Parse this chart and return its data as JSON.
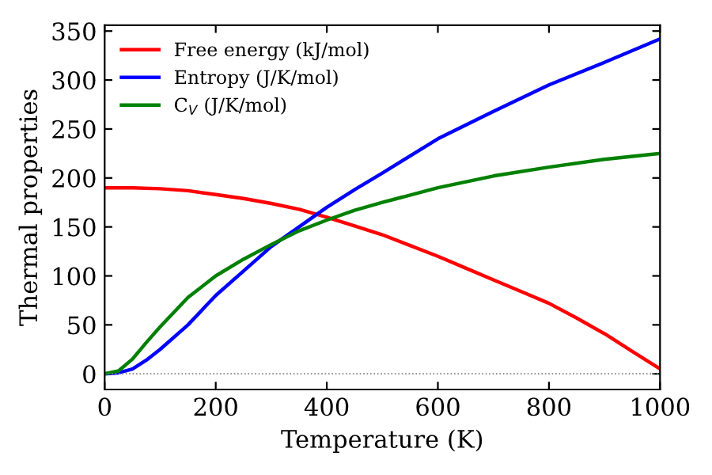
{
  "chart_data": {
    "type": "line",
    "xlabel": "Temperature (K)",
    "ylabel": "Thermal properties",
    "xlim": [
      0,
      1000
    ],
    "xticks": [
      0,
      200,
      400,
      600,
      800,
      1000
    ],
    "ylim": [
      -16,
      356
    ],
    "yticks": [
      0,
      50,
      100,
      150,
      200,
      250,
      300,
      350
    ],
    "legend": "top left",
    "grid": false,
    "marker": "none",
    "line_style": "solid",
    "ref_lines": [
      {
        "axis": "y",
        "value": 0,
        "color": "#808080",
        "line_style": "dotted"
      }
    ],
    "series": [
      {
        "name": "Free energy (kJ/mol)",
        "color": "#ff0000",
        "x": [
          0,
          50,
          100,
          150,
          200,
          250,
          300,
          350,
          400,
          450,
          500,
          550,
          600,
          650,
          700,
          750,
          800,
          850,
          900,
          950,
          1000
        ],
        "values": [
          190,
          190,
          189,
          187,
          183,
          179,
          174,
          168,
          160,
          151,
          142,
          131,
          120,
          108,
          96,
          84,
          72,
          57,
          41,
          23,
          5
        ]
      },
      {
        "name": "Entropy (J/K/mol)",
        "color": "#0000ff",
        "x": [
          0,
          25,
          50,
          75,
          100,
          150,
          200,
          250,
          300,
          350,
          400,
          450,
          500,
          600,
          700,
          800,
          900,
          1000
        ],
        "values": [
          0,
          1,
          5,
          14,
          25,
          50,
          80,
          105,
          130,
          150,
          170,
          188,
          205,
          240,
          268,
          295,
          318,
          342
        ]
      },
      {
        "name": "C$_{V}$ (J/K/mol)",
        "color": "#008000",
        "x": [
          0,
          25,
          50,
          75,
          100,
          150,
          200,
          250,
          300,
          350,
          400,
          450,
          500,
          600,
          700,
          800,
          900,
          1000
        ],
        "values": [
          0,
          3,
          15,
          32,
          48,
          78,
          100,
          117,
          132,
          146,
          157,
          167,
          175,
          190,
          202,
          211,
          219,
          225
        ]
      }
    ]
  }
}
